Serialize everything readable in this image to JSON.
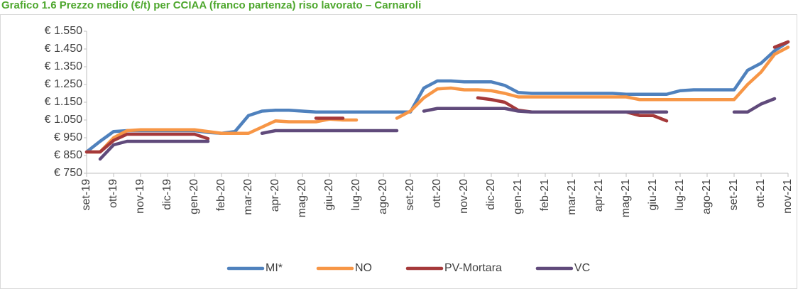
{
  "chart_data": {
    "type": "line",
    "title": "Grafico 1.6 Prezzo medio (€/t) per CCIAA (franco partenza) riso lavorato – Carnaroli",
    "categories": [
      "set-19",
      null,
      "ott-19",
      null,
      "nov-19",
      null,
      "dic-19",
      null,
      "gen-20",
      null,
      "feb-20",
      null,
      "mar-20",
      null,
      "apr-20",
      null,
      "mag-20",
      null,
      "giu-20",
      null,
      "lug-20",
      null,
      "ago-20",
      null,
      "set-20",
      null,
      "ott-20",
      null,
      "nov-20",
      null,
      "dic-20",
      null,
      "gen-21",
      null,
      "feb-21",
      null,
      "mar-21",
      null,
      "apr-21",
      null,
      "mag-21",
      null,
      "giu-21",
      null,
      "lug-21",
      null,
      "ago-21",
      null,
      "set-21",
      null,
      "ott-21",
      null,
      "nov-21"
    ],
    "series": [
      {
        "name": "MI*",
        "color": "#4f81bd",
        "values": [
          870,
          930,
          985,
          990,
          990,
          990,
          990,
          990,
          990,
          980,
          975,
          985,
          1075,
          1100,
          1105,
          1105,
          1100,
          1095,
          1095,
          1095,
          1095,
          1095,
          1095,
          1095,
          1095,
          1230,
          1270,
          1270,
          1265,
          1265,
          1265,
          1245,
          1205,
          1200,
          1200,
          1200,
          1200,
          1200,
          1200,
          1200,
          1195,
          1195,
          1195,
          1195,
          1215,
          1220,
          1220,
          1220,
          1220,
          1330,
          1370,
          1440,
          1490
        ]
      },
      {
        "name": "NO",
        "color": "#f79646",
        "values": [
          870,
          870,
          950,
          990,
          995,
          995,
          995,
          995,
          995,
          985,
          975,
          975,
          975,
          1010,
          1045,
          1040,
          1040,
          1040,
          1055,
          1050,
          1050,
          null,
          null,
          1060,
          1100,
          1175,
          1225,
          1230,
          1220,
          1220,
          1215,
          1200,
          1180,
          1180,
          1180,
          1180,
          1180,
          1180,
          1180,
          1180,
          1180,
          1165,
          1165,
          1165,
          1165,
          1165,
          1165,
          1165,
          1165,
          1250,
          1320,
          1420,
          1460
        ]
      },
      {
        "name": "PV-Mortara",
        "color": "#a5393a",
        "values": [
          870,
          870,
          935,
          970,
          970,
          970,
          970,
          970,
          970,
          945,
          null,
          null,
          null,
          null,
          null,
          null,
          null,
          1060,
          1060,
          1060,
          null,
          null,
          null,
          null,
          null,
          null,
          null,
          null,
          null,
          1175,
          1165,
          1150,
          1105,
          1095,
          1095,
          1095,
          1095,
          1095,
          1095,
          1095,
          1095,
          1075,
          1075,
          1045,
          null,
          null,
          null,
          null,
          null,
          null,
          null,
          1460,
          1490
        ]
      },
      {
        "name": "VC",
        "color": "#604a7b",
        "values": [
          null,
          830,
          910,
          930,
          930,
          930,
          930,
          930,
          930,
          930,
          null,
          null,
          null,
          975,
          990,
          990,
          990,
          990,
          990,
          990,
          990,
          990,
          990,
          990,
          null,
          1100,
          1115,
          1115,
          1115,
          1115,
          1115,
          1115,
          1100,
          1095,
          1095,
          1095,
          1095,
          1095,
          1095,
          1095,
          1095,
          1095,
          1095,
          1095,
          null,
          null,
          null,
          null,
          1095,
          1095,
          1140,
          1170,
          null
        ]
      }
    ],
    "ylim": [
      750,
      1550
    ],
    "yticks": [
      {
        "value": 750,
        "label": "€ 750"
      },
      {
        "value": 850,
        "label": "€ 850"
      },
      {
        "value": 950,
        "label": "€ 950"
      },
      {
        "value": 1050,
        "label": "€ 1.050"
      },
      {
        "value": 1150,
        "label": "€ 1.150"
      },
      {
        "value": 1250,
        "label": "€ 1.250"
      },
      {
        "value": 1350,
        "label": "€ 1.350"
      },
      {
        "value": 1450,
        "label": "€ 1.450"
      },
      {
        "value": 1550,
        "label": "€ 1.550"
      }
    ],
    "legend": "bottom"
  }
}
